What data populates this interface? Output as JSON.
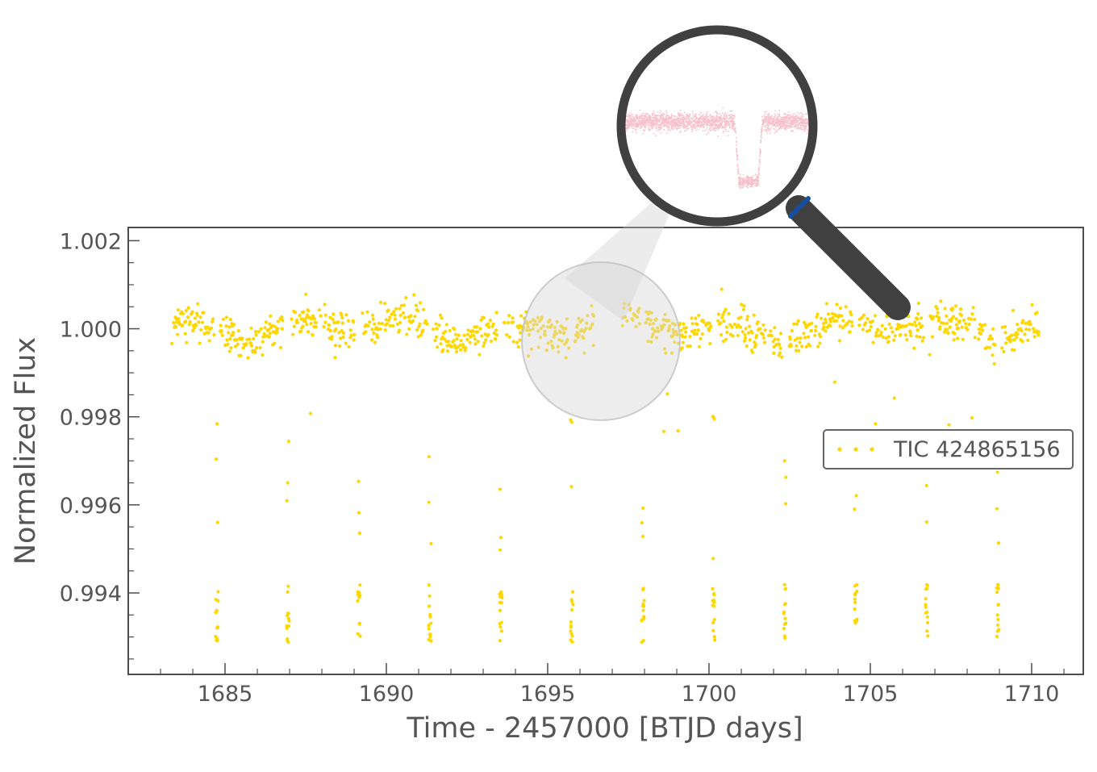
{
  "chart_data": {
    "type": "scatter",
    "xlabel": "Time - 2457000 [BTJD days]",
    "ylabel": "Normalized Flux",
    "xlim": [
      1682.0,
      1711.6
    ],
    "ylim": [
      0.99215,
      1.0023
    ],
    "x_ticks": [
      1685,
      1690,
      1695,
      1700,
      1705,
      1710
    ],
    "x_tick_labels": [
      "1685",
      "1690",
      "1695",
      "1700",
      "1705",
      "1710"
    ],
    "y_ticks": [
      0.994,
      0.996,
      0.998,
      1.0,
      1.002
    ],
    "y_tick_labels": [
      "0.994",
      "0.996",
      "0.998",
      "1.000",
      "1.002"
    ],
    "grid": false,
    "legend_position": "right",
    "series": [
      {
        "name": "TIC 424865156",
        "color": "#ffd700",
        "marker": "dot",
        "baseline": 1.0,
        "time_range": [
          1683.35,
          1710.25
        ],
        "data_gap": [
          1696.45,
          1697.3
        ],
        "scatter_amplitude": 0.00065,
        "transit_depth": 0.0066,
        "transit_times": [
          1684.75,
          1686.95,
          1689.15,
          1691.35,
          1693.55,
          1695.75,
          1697.95,
          1700.15,
          1702.35,
          1704.55,
          1706.75,
          1708.95
        ]
      }
    ],
    "inset": {
      "description_icon": "magnifier-icon",
      "color": "#f7c0cc",
      "handle_color": "#404040",
      "band_color": "#1550a0"
    }
  }
}
